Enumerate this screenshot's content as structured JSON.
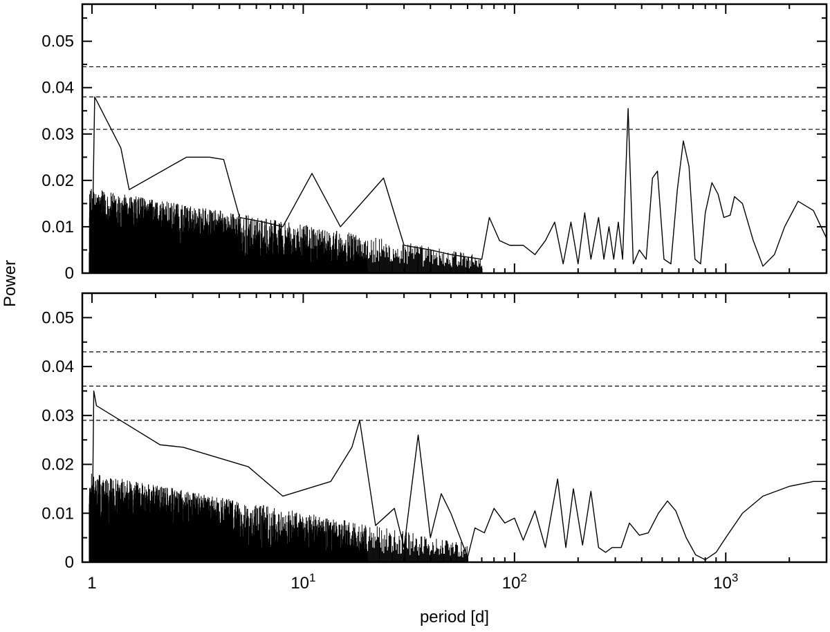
{
  "chart_data": [
    {
      "type": "line",
      "panel": "top",
      "x_scale": "log",
      "xlim": [
        0.9,
        3000
      ],
      "ylim": [
        0,
        0.058
      ],
      "ylabel": "Power",
      "xlabel": "period [d]",
      "y_ticks": [
        "0",
        "0.01",
        "0.02",
        "0.03",
        "0.04",
        "0.05"
      ],
      "x_ticks": [
        "1",
        "10",
        "100",
        "1000"
      ],
      "thresholds": [
        0.031,
        0.038,
        0.0445
      ],
      "series": [
        {
          "x": [
            1.0,
            1.03,
            1.37,
            1.5,
            2.8,
            3.6,
            4.2,
            5.0,
            6.5,
            8.0,
            11.0,
            15.0,
            24.0,
            30.0,
            40.0,
            50.0,
            70.0,
            76.0,
            85.0,
            95.0,
            110.0,
            125.0,
            140.0,
            155.0,
            170.0,
            185.0,
            200.0,
            215.0,
            230.0,
            250.0,
            265.0,
            280.0,
            295.0,
            310.0,
            325.0,
            345.0,
            365.0,
            390.0,
            420.0,
            450.0,
            475.0,
            510.0,
            550.0,
            590.0,
            630.0,
            670.0,
            715.0,
            760.0,
            800.0,
            860.0,
            920.0,
            980.0,
            1050.0,
            1100.0,
            1200.0,
            1350.0,
            1500.0,
            1700.0,
            1900.0,
            2200.0,
            2600.0,
            3000.0
          ],
          "y": [
            0.002,
            0.038,
            0.027,
            0.018,
            0.025,
            0.025,
            0.0245,
            0.012,
            0.011,
            0.01,
            0.0215,
            0.01,
            0.0205,
            0.006,
            0.005,
            0.004,
            0.003,
            0.012,
            0.007,
            0.006,
            0.006,
            0.004,
            0.007,
            0.011,
            0.002,
            0.011,
            0.002,
            0.013,
            0.003,
            0.012,
            0.003,
            0.01,
            0.003,
            0.011,
            0.003,
            0.0355,
            0.002,
            0.005,
            0.003,
            0.0205,
            0.022,
            0.003,
            0.002,
            0.018,
            0.0285,
            0.023,
            0.003,
            0.002,
            0.013,
            0.0195,
            0.017,
            0.012,
            0.0125,
            0.0165,
            0.015,
            0.007,
            0.0015,
            0.004,
            0.01,
            0.0155,
            0.0135,
            0.0075
          ]
        }
      ]
    },
    {
      "type": "line",
      "panel": "bottom",
      "x_scale": "log",
      "xlim": [
        0.9,
        3000
      ],
      "ylim": [
        0,
        0.055
      ],
      "ylabel": "Power",
      "xlabel": "period [d]",
      "y_ticks": [
        "0",
        "0.01",
        "0.02",
        "0.03",
        "0.04",
        "0.05"
      ],
      "x_ticks": [
        "1",
        "10",
        "100",
        "1000"
      ],
      "thresholds": [
        0.029,
        0.036,
        0.043
      ],
      "series": [
        {
          "x": [
            1.0,
            1.02,
            1.05,
            2.1,
            2.7,
            5.5,
            8.0,
            13.5,
            17.0,
            18.5,
            22.0,
            27.0,
            30.0,
            35.0,
            40.0,
            45.0,
            50.0,
            60.0,
            65.0,
            72.0,
            80.0,
            90.0,
            100.0,
            110.0,
            125.0,
            140.0,
            160.0,
            175.0,
            190.0,
            210.0,
            230.0,
            250.0,
            270.0,
            290.0,
            320.0,
            350.0,
            390.0,
            430.0,
            480.0,
            530.0,
            580.0,
            650.0,
            720.0,
            800.0,
            900.0,
            1000.0,
            1200.0,
            1500.0,
            2000.0,
            2600.0,
            3000.0
          ],
          "y": [
            0.001,
            0.035,
            0.032,
            0.024,
            0.0235,
            0.0195,
            0.0135,
            0.0165,
            0.0235,
            0.029,
            0.0075,
            0.011,
            0.003,
            0.026,
            0.005,
            0.014,
            0.01,
            0.001,
            0.007,
            0.006,
            0.011,
            0.008,
            0.009,
            0.0045,
            0.0105,
            0.003,
            0.017,
            0.003,
            0.015,
            0.0035,
            0.0145,
            0.003,
            0.002,
            0.003,
            0.003,
            0.008,
            0.0055,
            0.006,
            0.01,
            0.0125,
            0.0105,
            0.005,
            0.0015,
            0.0005,
            0.002,
            0.005,
            0.01,
            0.0135,
            0.0155,
            0.0165,
            0.0165
          ]
        }
      ]
    }
  ]
}
